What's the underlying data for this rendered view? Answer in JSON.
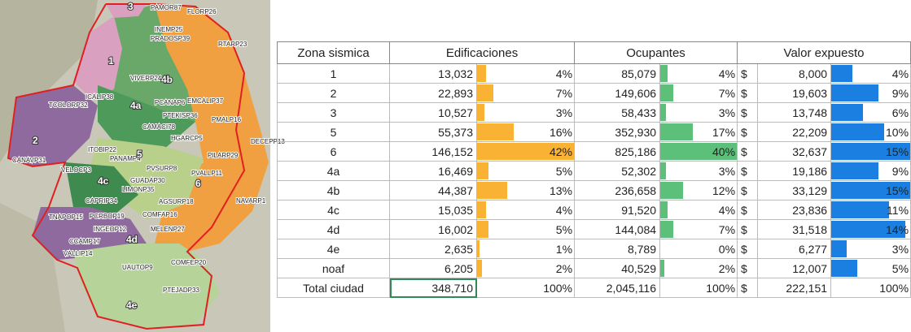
{
  "map": {
    "labels": [
      "3",
      "PAMOR87",
      "FLORP26",
      "INEMP25",
      "PRADOSP39",
      "RTARP23",
      "1",
      "VIVERP24",
      "4b",
      "TCOLORP32",
      "ICALIP38",
      "4a",
      "PCANAP6",
      "EMCALIP37",
      "PTEKISP36",
      "PMALP16",
      "CAMACI78",
      "HGARCP5",
      "DECEPP13",
      "2",
      "ITOBIP22",
      "PANAMP4",
      "5",
      "PILARP29",
      "CANAVP31",
      "VELOCP3",
      "PVSURP8",
      "PVALLP11",
      "6",
      "GUADAP30",
      "4c",
      "LIMONP35",
      "NAVARP1",
      "CAPRIP34",
      "AGSURP18",
      "TNAPOP15",
      "PCRBOP19",
      "COMFAP16",
      "INGEOP12",
      "MELENP27",
      "CCAMP17",
      "4d",
      "VALLIP14",
      "UAUTOP9",
      "COMFEP20",
      "PTEJADP33",
      "4e"
    ]
  },
  "table": {
    "header": [
      "Zona sismica",
      "Edificaciones",
      "Ocupantes",
      "Valor expuesto"
    ],
    "rows": [
      [
        "1",
        "13,032",
        "4%",
        "85,079",
        "4%",
        "$",
        "8,000",
        "4%"
      ],
      [
        "2",
        "22,893",
        "7%",
        "149,606",
        "7%",
        "$",
        "19,603",
        "9%"
      ],
      [
        "3",
        "10,527",
        "3%",
        "58,433",
        "3%",
        "$",
        "13,748",
        "6%"
      ],
      [
        "5",
        "55,373",
        "16%",
        "352,930",
        "17%",
        "$",
        "22,209",
        "10%"
      ],
      [
        "6",
        "146,152",
        "42%",
        "825,186",
        "40%",
        "$",
        "32,637",
        "15%"
      ],
      [
        "4a",
        "16,469",
        "5%",
        "52,302",
        "3%",
        "$",
        "19,186",
        "9%"
      ],
      [
        "4b",
        "44,387",
        "13%",
        "236,658",
        "12%",
        "$",
        "33,129",
        "15%"
      ],
      [
        "4c",
        "15,035",
        "4%",
        "91,520",
        "4%",
        "$",
        "23,836",
        "11%"
      ],
      [
        "4d",
        "16,002",
        "5%",
        "144,084",
        "7%",
        "$",
        "31,518",
        "14%"
      ],
      [
        "4e",
        "2,635",
        "1%",
        "8,789",
        "0%",
        "$",
        "6,277",
        "3%"
      ],
      [
        "noaf",
        "6,205",
        "2%",
        "40,529",
        "2%",
        "$",
        "12,007",
        "5%"
      ]
    ],
    "total": [
      "Total ciudad",
      "348,710",
      "100%",
      "2,045,116",
      "100%",
      "$",
      "222,151",
      "100%"
    ]
  }
}
